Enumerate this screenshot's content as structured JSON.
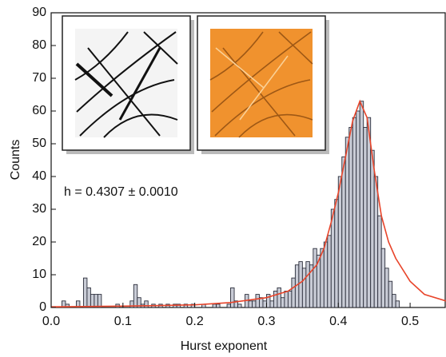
{
  "chart_data": {
    "type": "histogram",
    "xlabel": "Hurst exponent",
    "ylabel": "Counts",
    "annotation": "h = 0.4307 ± 0.0010",
    "bins": [
      0.015,
      0.02,
      0.025,
      0.03,
      0.035,
      0.04,
      0.045,
      0.05,
      0.055,
      0.06,
      0.065,
      0.07,
      0.075,
      0.08,
      0.085,
      0.09,
      0.095,
      0.1,
      0.105,
      0.11,
      0.115,
      0.12,
      0.125,
      0.13,
      0.135,
      0.14,
      0.145,
      0.15,
      0.155,
      0.16,
      0.165,
      0.17,
      0.175,
      0.18,
      0.185,
      0.19,
      0.195,
      0.2,
      0.205,
      0.21,
      0.215,
      0.22,
      0.225,
      0.23,
      0.235,
      0.24,
      0.245,
      0.25,
      0.255,
      0.26,
      0.265,
      0.27,
      0.275,
      0.28,
      0.285,
      0.29,
      0.295,
      0.3,
      0.305,
      0.31,
      0.315,
      0.32,
      0.325,
      0.33,
      0.335,
      0.34,
      0.345,
      0.35,
      0.355,
      0.36,
      0.365,
      0.37,
      0.375,
      0.38,
      0.385,
      0.39,
      0.395,
      0.4,
      0.405,
      0.41,
      0.415,
      0.42,
      0.425,
      0.43,
      0.435,
      0.44,
      0.445,
      0.45,
      0.455,
      0.46,
      0.465,
      0.47,
      0.475,
      0.48,
      0.485,
      0.49
    ],
    "values": [
      2,
      1,
      0,
      0,
      2,
      0,
      9,
      6,
      4,
      4,
      4,
      0,
      0,
      0,
      0,
      1,
      0,
      0,
      0,
      2,
      7,
      3,
      1,
      2,
      0,
      1,
      0,
      1,
      0,
      1,
      0,
      1,
      1,
      0,
      1,
      0,
      1,
      0,
      0,
      1,
      0,
      0,
      1,
      1,
      0,
      0,
      1,
      6,
      2,
      1,
      0,
      4,
      2,
      2,
      4,
      3,
      2,
      4,
      2,
      5,
      6,
      3,
      5,
      5,
      9,
      13,
      14,
      12,
      14,
      13,
      18,
      16,
      18,
      20,
      22,
      30,
      33,
      40,
      46,
      52,
      55,
      58,
      60,
      63,
      55,
      58,
      48,
      40,
      28,
      18,
      12,
      8,
      4,
      2,
      0
    ],
    "color": "#c9ccd6",
    "fit": {
      "color": "#e8442a",
      "x": [
        0.0,
        0.05,
        0.1,
        0.15,
        0.2,
        0.25,
        0.3,
        0.33,
        0.35,
        0.37,
        0.38,
        0.39,
        0.4,
        0.41,
        0.42,
        0.43,
        0.44,
        0.45,
        0.46,
        0.47,
        0.48,
        0.5,
        0.52,
        0.55
      ],
      "values": [
        0.2,
        0.3,
        0.4,
        0.6,
        0.8,
        1.5,
        3,
        5,
        8,
        13,
        18,
        26,
        35,
        46,
        57,
        63,
        58,
        42,
        28,
        20,
        15,
        8,
        4,
        2
      ]
    },
    "xlim": [
      0,
      0.55
    ],
    "ylim": [
      0,
      90
    ],
    "xticks": [
      {
        "value": 0,
        "label": "0.0"
      },
      0.1,
      0.2,
      0.3,
      0.4,
      0.5
    ],
    "yticks": [
      0,
      10,
      20,
      30,
      40,
      50,
      60,
      70,
      80,
      90
    ]
  }
}
